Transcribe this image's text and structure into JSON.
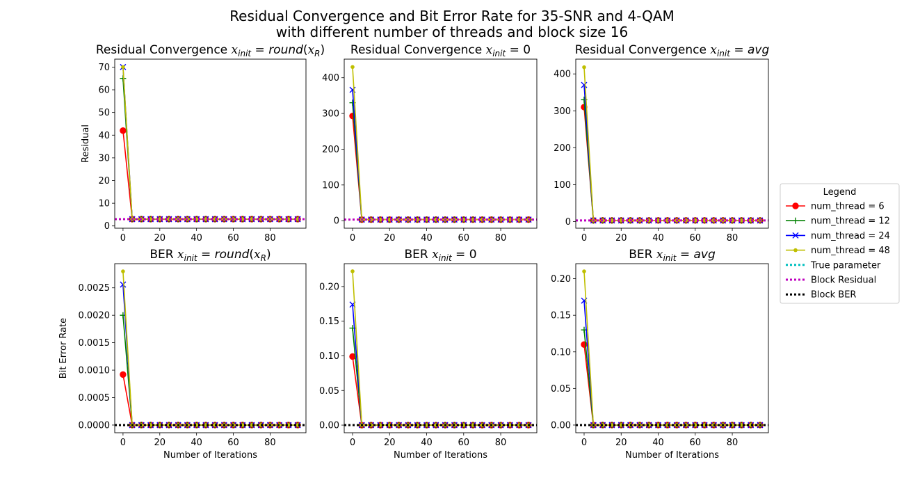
{
  "suptitle": [
    "Residual Convergence and Bit Error Rate for 35-SNR and 4-QAM",
    "with different number of threads and block size 16"
  ],
  "legend": {
    "title": "Legend",
    "entries": [
      {
        "label": "num_thread = 6",
        "color": "#ff0000",
        "marker": "circle",
        "style": "solid"
      },
      {
        "label": "num_thread = 12",
        "color": "#008000",
        "marker": "plus",
        "style": "solid"
      },
      {
        "label": "num_thread = 24",
        "color": "#0000ff",
        "marker": "x",
        "style": "solid"
      },
      {
        "label": "num_thread = 48",
        "color": "#bfbf00",
        "marker": "dot",
        "style": "solid"
      },
      {
        "label": "True parameter",
        "color": "#00bfbf",
        "marker": "none",
        "style": "dotted"
      },
      {
        "label": "Block Residual",
        "color": "#bf00bf",
        "marker": "none",
        "style": "dotted"
      },
      {
        "label": "Block BER",
        "color": "#000000",
        "marker": "none",
        "style": "dotted"
      }
    ]
  },
  "chart_data": [
    {
      "type": "line",
      "title_prefix": "Residual Convergence ",
      "title_math": "round",
      "title_arg": "R",
      "xlabel": "",
      "ylabel": "Residual",
      "xlim": [
        -4.5,
        99.5
      ],
      "ylim": [
        -1,
        73.5
      ],
      "xticks": [
        0,
        20,
        40,
        60,
        80
      ],
      "yticks": [
        0,
        10,
        20,
        30,
        40,
        50,
        60,
        70
      ],
      "ytick_labels": [
        "0",
        "10",
        "20",
        "30",
        "40",
        "50",
        "60",
        "70"
      ],
      "series": [
        {
          "name": "num_thread = 6",
          "x0": 0,
          "y0": 42,
          "x1": 5,
          "y1": 3
        },
        {
          "name": "num_thread = 12",
          "x0": 0,
          "y0": 65,
          "x1": 5,
          "y1": 3
        },
        {
          "name": "num_thread = 24",
          "x0": 0,
          "y0": 70,
          "x1": 5,
          "y1": 3
        },
        {
          "name": "num_thread = 48",
          "x0": 0,
          "y0": 70,
          "x1": 5,
          "y1": 3
        }
      ],
      "x_tail": {
        "start": 5,
        "step": 5,
        "end": 95
      },
      "hlines": [
        {
          "name": "Block Residual",
          "y": 3
        }
      ]
    },
    {
      "type": "line",
      "title_prefix": "Residual Convergence ",
      "title_math": "zero",
      "xlabel": "",
      "ylabel": "",
      "xlim": [
        -4.5,
        99.5
      ],
      "ylim": [
        -21,
        452
      ],
      "xticks": [
        0,
        20,
        40,
        60,
        80
      ],
      "yticks": [
        0,
        100,
        200,
        300,
        400
      ],
      "ytick_labels": [
        "0",
        "100",
        "200",
        "300",
        "400"
      ],
      "series": [
        {
          "name": "num_thread = 6",
          "x0": 0,
          "y0": 293,
          "x1": 5,
          "y1": 3
        },
        {
          "name": "num_thread = 12",
          "x0": 0,
          "y0": 330,
          "x1": 5,
          "y1": 3
        },
        {
          "name": "num_thread = 24",
          "x0": 0,
          "y0": 366,
          "x1": 5,
          "y1": 3
        },
        {
          "name": "num_thread = 48",
          "x0": 0,
          "y0": 430,
          "x1": 5,
          "y1": 3
        }
      ],
      "x_tail": {
        "start": 5,
        "step": 5,
        "end": 95
      },
      "hlines": [
        {
          "name": "Block Residual",
          "y": 3
        }
      ]
    },
    {
      "type": "line",
      "title_prefix": "Residual Convergence ",
      "title_math": "avg",
      "xlabel": "",
      "ylabel": "",
      "xlim": [
        -4.5,
        99.5
      ],
      "ylim": [
        -18,
        440
      ],
      "xticks": [
        0,
        20,
        40,
        60,
        80
      ],
      "yticks": [
        0,
        100,
        200,
        300,
        400
      ],
      "ytick_labels": [
        "0",
        "100",
        "200",
        "300",
        "400"
      ],
      "series": [
        {
          "name": "num_thread = 6",
          "x0": 0,
          "y0": 310,
          "x1": 5,
          "y1": 3
        },
        {
          "name": "num_thread = 12",
          "x0": 0,
          "y0": 330,
          "x1": 5,
          "y1": 3
        },
        {
          "name": "num_thread = 24",
          "x0": 0,
          "y0": 370,
          "x1": 5,
          "y1": 3
        },
        {
          "name": "num_thread = 48",
          "x0": 0,
          "y0": 418,
          "x1": 5,
          "y1": 3
        }
      ],
      "x_tail": {
        "start": 5,
        "step": 5,
        "end": 95
      },
      "hlines": [
        {
          "name": "Block Residual",
          "y": 3
        }
      ]
    },
    {
      "type": "line",
      "title_prefix": "BER ",
      "title_math": "round",
      "title_arg": "R",
      "xlabel": "Number of Iterations",
      "ylabel": "Bit Error Rate",
      "xlim": [
        -4.5,
        99.5
      ],
      "ylim": [
        -0.00014,
        0.00294
      ],
      "xticks": [
        0,
        20,
        40,
        60,
        80
      ],
      "yticks": [
        0,
        0.0005,
        0.001,
        0.0015,
        0.002,
        0.0025
      ],
      "ytick_labels": [
        "0.0000",
        "0.0005",
        "0.0010",
        "0.0015",
        "0.0020",
        "0.0025"
      ],
      "series": [
        {
          "name": "num_thread = 6",
          "x0": 0,
          "y0": 0.00092,
          "x1": 5,
          "y1": 0
        },
        {
          "name": "num_thread = 12",
          "x0": 0,
          "y0": 0.002,
          "x1": 5,
          "y1": 0
        },
        {
          "name": "num_thread = 24",
          "x0": 0,
          "y0": 0.00256,
          "x1": 5,
          "y1": 0
        },
        {
          "name": "num_thread = 48",
          "x0": 0,
          "y0": 0.0028,
          "x1": 5,
          "y1": 0
        }
      ],
      "x_tail": {
        "start": 5,
        "step": 5,
        "end": 95
      },
      "hlines": [
        {
          "name": "Block BER",
          "y": 0
        }
      ]
    },
    {
      "type": "line",
      "title_prefix": "BER ",
      "title_math": "zero",
      "xlabel": "Number of Iterations",
      "ylabel": "",
      "xlim": [
        -4.5,
        99.5
      ],
      "ylim": [
        -0.011,
        0.233
      ],
      "xticks": [
        0,
        20,
        40,
        60,
        80
      ],
      "yticks": [
        0,
        0.05,
        0.1,
        0.15,
        0.2
      ],
      "ytick_labels": [
        "0.00",
        "0.05",
        "0.10",
        "0.15",
        "0.20"
      ],
      "series": [
        {
          "name": "num_thread = 6",
          "x0": 0,
          "y0": 0.099,
          "x1": 5,
          "y1": 0
        },
        {
          "name": "num_thread = 12",
          "x0": 0,
          "y0": 0.14,
          "x1": 5,
          "y1": 0
        },
        {
          "name": "num_thread = 24",
          "x0": 0,
          "y0": 0.174,
          "x1": 5,
          "y1": 0
        },
        {
          "name": "num_thread = 48",
          "x0": 0,
          "y0": 0.222,
          "x1": 5,
          "y1": 0
        }
      ],
      "x_tail": {
        "start": 5,
        "step": 5,
        "end": 95
      },
      "hlines": [
        {
          "name": "Block BER",
          "y": 0
        }
      ]
    },
    {
      "type": "line",
      "title_prefix": "BER ",
      "title_math": "avg",
      "xlabel": "Number of Iterations",
      "ylabel": "",
      "xlim": [
        -4.5,
        99.5
      ],
      "ylim": [
        -0.0105,
        0.2205
      ],
      "xticks": [
        0,
        20,
        40,
        60,
        80
      ],
      "yticks": [
        0,
        0.05,
        0.1,
        0.15,
        0.2
      ],
      "ytick_labels": [
        "0.00",
        "0.05",
        "0.10",
        "0.15",
        "0.20"
      ],
      "series": [
        {
          "name": "num_thread = 6",
          "x0": 0,
          "y0": 0.11,
          "x1": 5,
          "y1": 0
        },
        {
          "name": "num_thread = 12",
          "x0": 0,
          "y0": 0.13,
          "x1": 5,
          "y1": 0
        },
        {
          "name": "num_thread = 24",
          "x0": 0,
          "y0": 0.17,
          "x1": 5,
          "y1": 0
        },
        {
          "name": "num_thread = 48",
          "x0": 0,
          "y0": 0.21,
          "x1": 5,
          "y1": 0
        }
      ],
      "x_tail": {
        "start": 5,
        "step": 5,
        "end": 95
      },
      "hlines": [
        {
          "name": "Block BER",
          "y": 0
        }
      ]
    }
  ]
}
